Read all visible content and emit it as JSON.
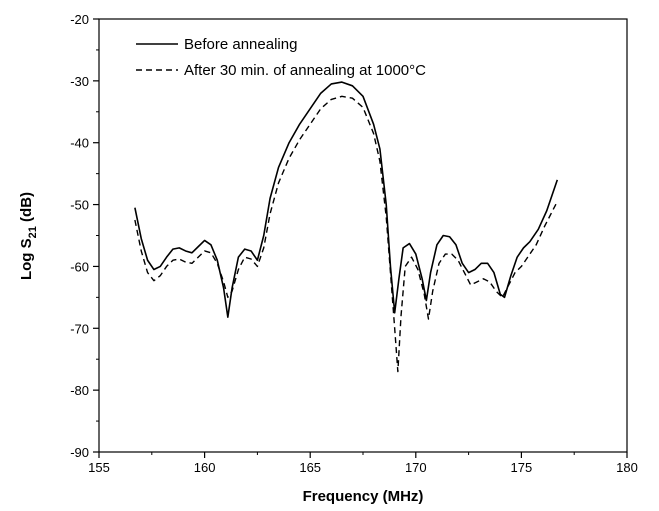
{
  "chart_data": {
    "type": "line",
    "title": "",
    "xlabel": "Frequency (MHz)",
    "ylabel_main": "Log S",
    "ylabel_sub": "21",
    "ylabel_unit": " (dB)",
    "xlim": [
      155,
      180
    ],
    "ylim": [
      -90,
      -20
    ],
    "xticks": [
      155,
      160,
      165,
      170,
      175,
      180
    ],
    "yticks": [
      -90,
      -80,
      -70,
      -60,
      -50,
      -40,
      -30,
      -20
    ],
    "grid": false,
    "legend_position": "top-left",
    "series": [
      {
        "name": "Before annealing",
        "style": "solid",
        "color": "#000000",
        "x": [
          156.7,
          157.0,
          157.3,
          157.6,
          157.9,
          158.2,
          158.5,
          158.8,
          159.1,
          159.4,
          159.7,
          160.0,
          160.3,
          160.6,
          160.9,
          161.1,
          161.3,
          161.6,
          161.9,
          162.2,
          162.5,
          162.8,
          163.1,
          163.5,
          164.0,
          164.5,
          165.0,
          165.5,
          166.0,
          166.5,
          167.0,
          167.5,
          168.0,
          168.3,
          168.6,
          168.8,
          169.0,
          169.2,
          169.4,
          169.7,
          170.0,
          170.3,
          170.5,
          170.7,
          171.0,
          171.3,
          171.6,
          171.9,
          172.2,
          172.5,
          172.8,
          173.1,
          173.4,
          173.7,
          174.0,
          174.2,
          174.5,
          174.8,
          175.1,
          175.4,
          175.8,
          176.2,
          176.7
        ],
        "y": [
          -50.5,
          -55.5,
          -59.0,
          -60.5,
          -60.0,
          -58.5,
          -57.2,
          -57.0,
          -57.5,
          -57.8,
          -56.8,
          -55.8,
          -56.5,
          -59.0,
          -63.5,
          -68.2,
          -63.5,
          -58.5,
          -57.2,
          -57.5,
          -59.0,
          -55.0,
          -49.0,
          -44.0,
          -40.0,
          -37.0,
          -34.5,
          -32.0,
          -30.5,
          -30.2,
          -30.8,
          -32.5,
          -37.0,
          -41.0,
          -50.0,
          -60.0,
          -67.5,
          -62.0,
          -57.0,
          -56.3,
          -58.0,
          -62.0,
          -65.5,
          -61.0,
          -56.5,
          -55.0,
          -55.2,
          -56.5,
          -59.5,
          -61.0,
          -60.5,
          -59.5,
          -59.5,
          -61.0,
          -64.5,
          -65.0,
          -61.5,
          -58.5,
          -57.0,
          -56.0,
          -54.0,
          -51.0,
          -46.0
        ]
      },
      {
        "name": "After 30 min. of annealing at 1000°C",
        "style": "dashed",
        "color": "#000000",
        "x": [
          156.7,
          157.0,
          157.3,
          157.6,
          157.9,
          158.2,
          158.5,
          158.8,
          159.1,
          159.4,
          159.7,
          160.0,
          160.3,
          160.6,
          160.9,
          161.1,
          161.3,
          161.6,
          161.9,
          162.2,
          162.5,
          162.8,
          163.1,
          163.5,
          164.0,
          164.5,
          165.0,
          165.5,
          166.0,
          166.5,
          167.0,
          167.5,
          168.0,
          168.3,
          168.6,
          168.8,
          169.0,
          169.15,
          169.3,
          169.5,
          169.8,
          170.1,
          170.4,
          170.6,
          170.8,
          171.1,
          171.4,
          171.7,
          172.0,
          172.3,
          172.6,
          172.9,
          173.2,
          173.5,
          173.8,
          174.1,
          174.4,
          174.7,
          175.0,
          175.3,
          175.7,
          176.1,
          176.7
        ],
        "y": [
          -52.5,
          -57.5,
          -61.0,
          -62.3,
          -61.5,
          -60.0,
          -59.0,
          -58.8,
          -59.3,
          -59.5,
          -58.5,
          -57.5,
          -57.8,
          -59.5,
          -62.5,
          -65.0,
          -64.0,
          -60.5,
          -58.5,
          -58.8,
          -60.0,
          -57.0,
          -51.5,
          -46.5,
          -42.5,
          -39.5,
          -37.0,
          -34.5,
          -33.0,
          -32.5,
          -32.8,
          -34.3,
          -38.5,
          -43.0,
          -52.0,
          -61.0,
          -70.0,
          -77.0,
          -68.0,
          -60.0,
          -58.5,
          -60.5,
          -64.5,
          -68.5,
          -64.0,
          -59.5,
          -58.0,
          -58.0,
          -59.0,
          -61.0,
          -63.0,
          -62.5,
          -62.0,
          -62.5,
          -64.0,
          -65.0,
          -63.0,
          -61.0,
          -60.0,
          -58.5,
          -56.5,
          -53.5,
          -49.5
        ]
      }
    ]
  }
}
